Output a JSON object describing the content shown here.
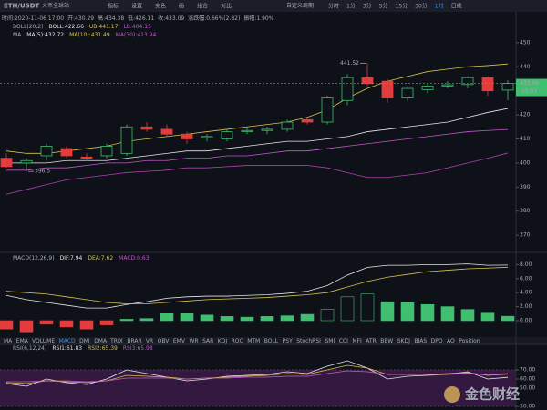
{
  "toolbar": {
    "symbol": "ETH/USDT",
    "exchange": "火币全球站",
    "tools": [
      "指标",
      "设置",
      "充色",
      "画",
      "组合",
      "对比"
    ],
    "custom_period": "自定义周期",
    "periods": [
      "分时",
      "1分",
      "3分",
      "5分",
      "15分",
      "30分",
      "1时",
      "日线"
    ],
    "active_period": 6
  },
  "info": [
    "时间:2020-11-06 17:00",
    "开:430.29",
    "高:434.38",
    "低:426.11",
    "收:433.09",
    "涨跌幅:0.66%(2.82)",
    "振幅:1.90%"
  ],
  "main": {
    "boll_label": "BOLL(20,2)",
    "boll_values": [
      "BOLL:422.66",
      "UB:441.17",
      "LB:404.15"
    ],
    "ma_label": "MA",
    "ma_values": [
      "MA(5):432.72",
      "MA(10):431.49",
      "MA(30):413.94"
    ],
    "ylim": [
      365.5,
      452.6
    ],
    "yticks": [
      450,
      440,
      430,
      420,
      410,
      400,
      390,
      380,
      370
    ],
    "up_color": "#3fbf6f",
    "down_color": "#e23c3c",
    "candles": [
      {
        "o": 402,
        "h": 404,
        "l": 398,
        "c": 398.5
      },
      {
        "o": 400,
        "h": 402,
        "l": 396.5,
        "c": 401
      },
      {
        "o": 403,
        "h": 408,
        "l": 401,
        "c": 407
      },
      {
        "o": 406,
        "h": 407,
        "l": 402,
        "c": 403
      },
      {
        "o": 402.5,
        "h": 404,
        "l": 401,
        "c": 402
      },
      {
        "o": 403,
        "h": 408,
        "l": 402,
        "c": 407
      },
      {
        "o": 404,
        "h": 416,
        "l": 403,
        "c": 415
      },
      {
        "o": 415,
        "h": 417,
        "l": 413,
        "c": 414
      },
      {
        "o": 414,
        "h": 416,
        "l": 411,
        "c": 412
      },
      {
        "o": 412,
        "h": 413,
        "l": 408,
        "c": 410
      },
      {
        "o": 410.5,
        "h": 412,
        "l": 409,
        "c": 411
      },
      {
        "o": 410,
        "h": 414,
        "l": 409,
        "c": 413
      },
      {
        "o": 413,
        "h": 415,
        "l": 412,
        "c": 413.5
      },
      {
        "o": 413.5,
        "h": 415,
        "l": 412,
        "c": 414
      },
      {
        "o": 414,
        "h": 418,
        "l": 413,
        "c": 417
      },
      {
        "o": 418,
        "h": 419,
        "l": 416,
        "c": 417
      },
      {
        "o": 417,
        "h": 428,
        "l": 416,
        "c": 427
      },
      {
        "o": 426,
        "h": 437,
        "l": 424,
        "c": 435.5
      },
      {
        "o": 435.5,
        "h": 441.52,
        "l": 432,
        "c": 433
      },
      {
        "o": 434,
        "h": 435,
        "l": 425,
        "c": 427
      },
      {
        "o": 427,
        "h": 432,
        "l": 426,
        "c": 431
      },
      {
        "o": 430.5,
        "h": 433,
        "l": 429,
        "c": 432
      },
      {
        "o": 432,
        "h": 434,
        "l": 431,
        "c": 432.5
      },
      {
        "o": 432.6,
        "h": 436,
        "l": 431,
        "c": 435.5
      },
      {
        "o": 435.5,
        "h": 436,
        "l": 428,
        "c": 430
      },
      {
        "o": 430.29,
        "h": 434.38,
        "l": 426.11,
        "c": 433.09
      }
    ],
    "lines": [
      {
        "color": "#d8c24a",
        "values": [
          405,
          404,
          404,
          405,
          406,
          407,
          409,
          410,
          411,
          412,
          413,
          414,
          415,
          416,
          417,
          419,
          422,
          427,
          431,
          434,
          436,
          438,
          439,
          440,
          440.5,
          441.17
        ]
      },
      {
        "color": "#e6e6e6",
        "values": [
          400,
          400,
          400,
          401,
          401,
          401,
          402,
          403,
          404,
          405,
          405,
          406,
          407,
          408,
          409,
          409,
          410,
          411,
          413,
          414,
          415,
          416,
          417,
          419,
          421,
          422.66
        ]
      },
      {
        "color": "#b03fb0",
        "values": [
          387,
          389,
          391,
          393,
          394,
          395,
          396,
          396.5,
          397,
          398,
          398,
          398.5,
          399,
          399,
          399,
          399,
          398,
          396,
          394,
          394,
          395,
          396,
          398,
          400,
          402,
          404.15
        ]
      },
      {
        "color": "#c05ac8",
        "values": [
          397,
          397,
          398,
          398,
          399,
          400,
          400,
          401,
          401,
          402,
          402,
          403,
          403,
          404,
          405,
          405,
          406,
          407,
          408,
          409,
          410,
          411,
          412,
          413,
          413.5,
          413.94
        ]
      }
    ],
    "high_mark": 441.52,
    "low_mark": 396.5,
    "last_price": 433.09,
    "countdown": "05:07"
  },
  "macd": {
    "label": "MACD(12,26,9)",
    "values": [
      "DIF:7.94",
      "DEA:7.62",
      "MACD:0.63"
    ],
    "ylim": [
      -1.3,
      8.57
    ],
    "yticks": [
      {
        "value": 8,
        "label": "8.00"
      },
      {
        "value": 6,
        "label": "6.00"
      },
      {
        "value": 4,
        "label": "4.00"
      },
      {
        "value": 2,
        "label": "2.00"
      },
      {
        "value": 0,
        "label": "0.00"
      }
    ],
    "hist": [
      -1.2,
      -1.6,
      -0.5,
      -0.9,
      -1.2,
      -0.6,
      0.2,
      0.3,
      1.0,
      1.0,
      0.8,
      0.6,
      0.5,
      0.6,
      0.7,
      0.9,
      1.6,
      3.4,
      3.8,
      2.7,
      2.6,
      2.3,
      2.0,
      1.6,
      1.2,
      0.63
    ],
    "lines": [
      {
        "color": "#e6e6e6",
        "values": [
          3.6,
          3.0,
          2.6,
          2.2,
          1.8,
          1.8,
          2.3,
          2.7,
          3.2,
          3.4,
          3.5,
          3.5,
          3.6,
          3.7,
          3.9,
          4.2,
          5.0,
          6.5,
          7.6,
          7.9,
          7.9,
          8.0,
          8.0,
          8.1,
          7.9,
          7.94
        ]
      },
      {
        "color": "#d8c24a",
        "values": [
          4.2,
          4.0,
          3.8,
          3.4,
          3.0,
          2.6,
          2.4,
          2.4,
          2.6,
          2.8,
          3.0,
          3.1,
          3.2,
          3.3,
          3.5,
          3.7,
          4.0,
          4.8,
          5.6,
          6.2,
          6.6,
          7.0,
          7.2,
          7.4,
          7.5,
          7.62
        ]
      }
    ]
  },
  "tabs": [
    "MA",
    "EMA",
    "VOLUME",
    "MACD",
    "DMI",
    "DMA",
    "TRIX",
    "BRAR",
    "VR",
    "OBV",
    "EMV",
    "WR",
    "SAR",
    "KDJ",
    "ROC",
    "MTM",
    "BOLL",
    "PSY",
    "StochRSI",
    "SMI",
    "CCI",
    "MFI",
    "ATR",
    "BBW",
    "SKDJ",
    "BIAS",
    "DPO",
    "AO",
    "Position"
  ],
  "active_tab": 3,
  "rsi": {
    "label": "RSI(6,12,24)",
    "values": [
      "RSI1:61.83",
      "RSI2:65.39",
      "RSI3:65.98"
    ],
    "ylim": [
      26,
      88
    ],
    "yticks": [
      {
        "value": 70,
        "label": "70.00"
      },
      {
        "value": 60,
        "label": "60.00"
      },
      {
        "value": 50,
        "label": "50.00"
      },
      {
        "value": 30,
        "label": "30.00"
      }
    ],
    "lines": [
      {
        "color": "#e6e6e6",
        "values": [
          55,
          52,
          60,
          56,
          54,
          60,
          70,
          66,
          62,
          58,
          60,
          63,
          64,
          65,
          68,
          66,
          74,
          80,
          72,
          60,
          63,
          64,
          65,
          68,
          60,
          61.83
        ]
      },
      {
        "color": "#d8c24a",
        "values": [
          56,
          55,
          58,
          57,
          56,
          58,
          64,
          63,
          62,
          60,
          61,
          62,
          63,
          64,
          66,
          65,
          70,
          75,
          72,
          65,
          65,
          65,
          66,
          67,
          64,
          65.39
        ]
      },
      {
        "color": "#c05ac8",
        "values": [
          57,
          57,
          58,
          58,
          57,
          58,
          61,
          61,
          61,
          60,
          61,
          61,
          62,
          62,
          63,
          63,
          66,
          69,
          68,
          65,
          65,
          65,
          65,
          66,
          65,
          65.98
        ]
      }
    ]
  },
  "watermark": "金色财经"
}
